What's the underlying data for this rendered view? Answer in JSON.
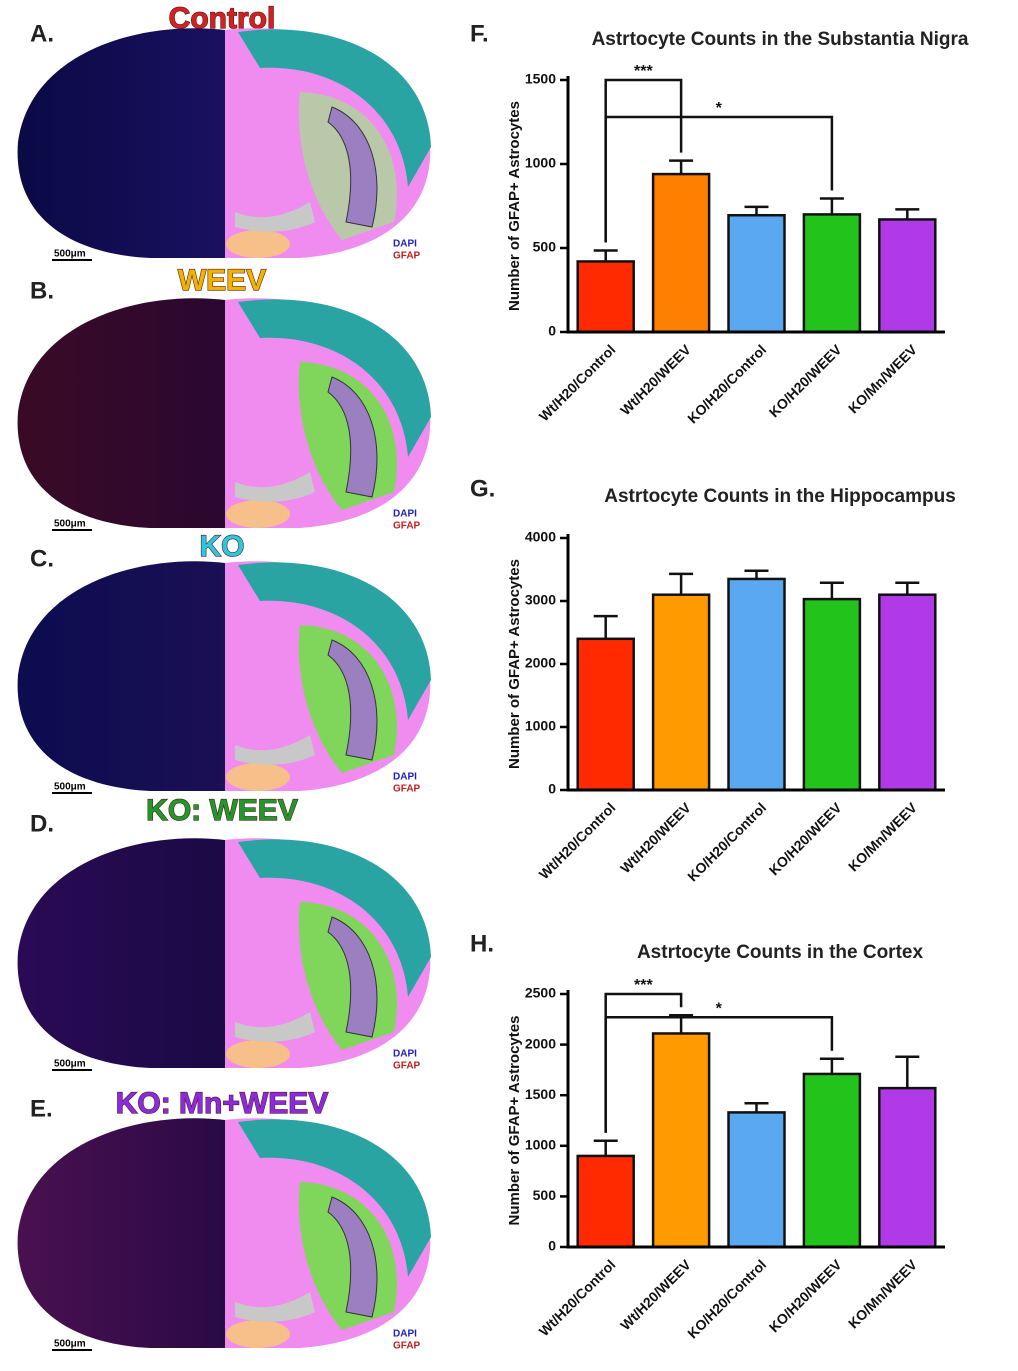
{
  "panels": [
    {
      "letter": "A.",
      "title": "Control",
      "color": "#d42020"
    },
    {
      "letter": "B.",
      "title": "WEEV",
      "color": "#f0b400"
    },
    {
      "letter": "C.",
      "title": "KO",
      "color": "#28c8e0"
    },
    {
      "letter": "D.",
      "title": "KO: WEEV",
      "color": "#1f9a2a"
    },
    {
      "letter": "E.",
      "title": "KO: Mn+WEEV",
      "color": "#8a2be2"
    }
  ],
  "scale_bar": "500μm",
  "stain_legend": [
    "DAPI",
    "GFAP"
  ],
  "chart_data": [
    {
      "type": "bar",
      "panel_label": "F.",
      "title": "Astrtocyte Counts in the Substantia Nigra",
      "y_label": "Number of GFAP+ Astrocytes",
      "categories": [
        "Wt/H20/Control",
        "Wt/H20/WEEV",
        "KO/H20/Control",
        "KO/H20/WEEV",
        "KO/Mn/WEEV"
      ],
      "values": [
        420,
        940,
        695,
        700,
        670
      ],
      "errors": [
        65,
        80,
        50,
        95,
        60
      ],
      "colors": [
        "#ff2a00",
        "#ff7f00",
        "#5aa9f0",
        "#22c41c",
        "#b13ae8"
      ],
      "ylim": [
        0,
        1500
      ],
      "yticks": [
        0,
        500,
        1000,
        1500
      ],
      "significance": [
        {
          "from": "Wt/H20/Control",
          "to": "Wt/H20/WEEV",
          "level": 1500,
          "label": "***"
        },
        {
          "from": "Wt/H20/Control",
          "to": "KO/H20/WEEV",
          "level": 1280,
          "label": "*"
        }
      ]
    },
    {
      "type": "bar",
      "panel_label": "G.",
      "title": "Astrtocyte Counts in the Hippocampus",
      "y_label": "Number of GFAP+ Astrocytes",
      "categories": [
        "Wt/H20/Control",
        "Wt/H20/WEEV",
        "KO/H20/Control",
        "KO/H20/WEEV",
        "KO/Mn/WEEV"
      ],
      "values": [
        2400,
        3100,
        3350,
        3030,
        3100
      ],
      "errors": [
        360,
        330,
        130,
        260,
        190
      ],
      "colors": [
        "#ff2a00",
        "#ff9a00",
        "#5aa9f0",
        "#22c41c",
        "#b13ae8"
      ],
      "ylim": [
        0,
        4000
      ],
      "yticks": [
        0,
        1000,
        2000,
        3000,
        4000
      ]
    },
    {
      "type": "bar",
      "panel_label": "H.",
      "title": "Astrtocyte Counts in the Cortex",
      "y_label": "Number of GFAP+ Astrocytes",
      "categories": [
        "Wt/H20/Control",
        "Wt/H20/WEEV",
        "KO/H20/Control",
        "KO/H20/WEEV",
        "KO/Mn/WEEV"
      ],
      "values": [
        900,
        2110,
        1330,
        1710,
        1570
      ],
      "errors": [
        150,
        180,
        90,
        150,
        310
      ],
      "colors": [
        "#ff2a00",
        "#ff9a00",
        "#5aa9f0",
        "#22c41c",
        "#b13ae8"
      ],
      "ylim": [
        0,
        2500
      ],
      "yticks": [
        0,
        500,
        1000,
        1500,
        2000,
        2500
      ],
      "significance": [
        {
          "from": "Wt/H20/Control",
          "to": "Wt/H20/WEEV",
          "level": 2500,
          "label": "***"
        },
        {
          "from": "Wt/H20/Control",
          "to": "KO/H20/WEEV",
          "level": 2270,
          "label": "*"
        }
      ]
    }
  ]
}
